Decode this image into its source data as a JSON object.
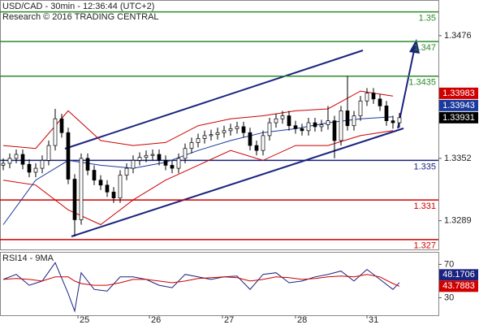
{
  "chart_data": [
    {
      "type": "candlestick",
      "title": "USD/CAD - 30min - 12:36:44 (UTC+2)",
      "subtitle": "Research © 2016 TRADING CENTRAL",
      "x": [
        0,
        1,
        2,
        3,
        4,
        5,
        6,
        7,
        8,
        9,
        10,
        11,
        12,
        13,
        14,
        15,
        16,
        17,
        18,
        19,
        20,
        21,
        22,
        23,
        24,
        25,
        26,
        27,
        28,
        29,
        30,
        31,
        32,
        33,
        34,
        35,
        36,
        37,
        38,
        39,
        40,
        41,
        42,
        43,
        44,
        45,
        46,
        47,
        48,
        49,
        50,
        51,
        52,
        53,
        54,
        55,
        56,
        57,
        58,
        59,
        60,
        61
      ],
      "open": [
        1.3345,
        1.3347,
        1.3352,
        1.3356,
        1.3346,
        1.3338,
        1.3342,
        1.335,
        1.3365,
        1.3392,
        1.3378,
        1.3331,
        1.329,
        1.3352,
        1.334,
        1.333,
        1.3325,
        1.3318,
        1.3312,
        1.3335,
        1.3342,
        1.335,
        1.3353,
        1.3355,
        1.3356,
        1.335,
        1.3345,
        1.3342,
        1.3352,
        1.3362,
        1.3368,
        1.3372,
        1.3375,
        1.3376,
        1.3378,
        1.338,
        1.3382,
        1.3384,
        1.3378,
        1.3365,
        1.336,
        1.3375,
        1.3388,
        1.3392,
        1.3395,
        1.3385,
        1.3382,
        1.338,
        1.3388,
        1.3384,
        1.3386,
        1.339,
        1.337,
        1.34,
        1.3385,
        1.3395,
        1.341,
        1.3418,
        1.3412,
        1.3405,
        1.339,
        1.3388
      ],
      "high": [
        1.3352,
        1.3357,
        1.3361,
        1.3361,
        1.3351,
        1.3347,
        1.3355,
        1.337,
        1.3402,
        1.3397,
        1.3383,
        1.3336,
        1.3357,
        1.3357,
        1.3345,
        1.3335,
        1.333,
        1.3323,
        1.334,
        1.3347,
        1.3355,
        1.3358,
        1.336,
        1.3361,
        1.3361,
        1.3355,
        1.335,
        1.3357,
        1.3367,
        1.3373,
        1.3377,
        1.338,
        1.3381,
        1.3383,
        1.3385,
        1.3387,
        1.3389,
        1.3389,
        1.3383,
        1.337,
        1.338,
        1.3393,
        1.3397,
        1.34,
        1.34,
        1.339,
        1.3387,
        1.3393,
        1.3393,
        1.3391,
        1.3405,
        1.3395,
        1.3405,
        1.3435,
        1.34,
        1.3415,
        1.3423,
        1.3423,
        1.3417,
        1.341,
        1.3395,
        1.3398
      ],
      "low": [
        1.334,
        1.3342,
        1.3347,
        1.3341,
        1.3333,
        1.3333,
        1.3337,
        1.3345,
        1.336,
        1.3373,
        1.3326,
        1.3273,
        1.3285,
        1.3335,
        1.3325,
        1.332,
        1.3313,
        1.3307,
        1.3307,
        1.333,
        1.3337,
        1.3345,
        1.3348,
        1.335,
        1.3345,
        1.334,
        1.3337,
        1.3337,
        1.3347,
        1.3357,
        1.3363,
        1.3367,
        1.337,
        1.3371,
        1.3373,
        1.3375,
        1.3377,
        1.3373,
        1.336,
        1.3355,
        1.3355,
        1.337,
        1.3383,
        1.3387,
        1.338,
        1.3377,
        1.3375,
        1.3375,
        1.3379,
        1.3379,
        1.3381,
        1.3352,
        1.3365,
        1.338,
        1.338,
        1.339,
        1.3405,
        1.3407,
        1.34,
        1.3385,
        1.3382,
        1.3383
      ],
      "close": [
        1.3347,
        1.3352,
        1.3356,
        1.3346,
        1.3338,
        1.3342,
        1.335,
        1.3365,
        1.3392,
        1.3378,
        1.3331,
        1.329,
        1.3352,
        1.334,
        1.333,
        1.3325,
        1.3318,
        1.3312,
        1.3335,
        1.3342,
        1.335,
        1.3353,
        1.3355,
        1.3356,
        1.335,
        1.3345,
        1.3342,
        1.3352,
        1.3362,
        1.3368,
        1.3372,
        1.3375,
        1.3376,
        1.3378,
        1.338,
        1.3382,
        1.3384,
        1.3378,
        1.3365,
        1.336,
        1.3375,
        1.3388,
        1.3392,
        1.3395,
        1.3385,
        1.3382,
        1.338,
        1.3388,
        1.3384,
        1.3386,
        1.339,
        1.337,
        1.34,
        1.3385,
        1.3395,
        1.341,
        1.3418,
        1.3412,
        1.3405,
        1.339,
        1.3388,
        1.33931
      ],
      "overlays": [
        {
          "color": "#cc0000",
          "x": [
            0,
            5,
            10,
            15,
            20,
            25,
            30,
            35,
            40,
            45,
            50,
            55,
            60
          ],
          "values": [
            1.3365,
            1.3362,
            1.34,
            1.337,
            1.3365,
            1.3368,
            1.3385,
            1.3392,
            1.3395,
            1.34,
            1.3402,
            1.342,
            1.3415
          ]
        },
        {
          "color": "#cc0000",
          "x": [
            0,
            5,
            10,
            15,
            20,
            25,
            30,
            35,
            40,
            45,
            50,
            55,
            60
          ],
          "values": [
            1.333,
            1.3325,
            1.33,
            1.3285,
            1.331,
            1.333,
            1.3345,
            1.336,
            1.335,
            1.3365,
            1.3365,
            1.3375,
            1.338
          ]
        },
        {
          "color": "#1a3a9c",
          "x": [
            0,
            5,
            10,
            15,
            20,
            25,
            30,
            35,
            40,
            45,
            50,
            55,
            60
          ],
          "values": [
            1.3285,
            1.333,
            1.335,
            1.3345,
            1.3342,
            1.3348,
            1.336,
            1.337,
            1.3378,
            1.3382,
            1.3388,
            1.3392,
            1.3394
          ]
        }
      ],
      "levels": [
        {
          "value": 1.35,
          "color": "#2e8b2e"
        },
        {
          "value": 1.347,
          "color": "#2e8b2e"
        },
        {
          "value": 1.3435,
          "color": "#2e8b2e"
        },
        {
          "value": 1.335,
          "color": "#1a237e"
        },
        {
          "value": 1.331,
          "color": "#d00000"
        },
        {
          "value": 1.327,
          "color": "#d00000"
        }
      ],
      "price_tags": [
        {
          "value": 1.33983,
          "color": "#d00000"
        },
        {
          "value": 1.33943,
          "color": "#1a3a9c"
        },
        {
          "value": 1.33931,
          "color": "#000000"
        }
      ],
      "xlim": [
        -0.5,
        67
      ],
      "ylim": [
        1.326,
        1.3512
      ],
      "yticks": [
        1.3476,
        1.3352,
        1.3289
      ]
    },
    {
      "type": "line",
      "title": "RSI14 - 9MA",
      "x": [
        0,
        2,
        4,
        6,
        8,
        10,
        11,
        12,
        14,
        16,
        18,
        20,
        22,
        24,
        26,
        28,
        30,
        32,
        34,
        36,
        38,
        40,
        42,
        44,
        46,
        48,
        50,
        52,
        54,
        56,
        58,
        60,
        61
      ],
      "series": [
        {
          "color": "#1a237e",
          "values": [
            52,
            58,
            45,
            50,
            72,
            35,
            14,
            60,
            40,
            38,
            55,
            55,
            52,
            45,
            42,
            58,
            55,
            52,
            55,
            56,
            40,
            58,
            60,
            48,
            50,
            55,
            58,
            62,
            50,
            64,
            52,
            40,
            48.1706
          ]
        },
        {
          "color": "#d00000",
          "values": [
            52,
            53,
            52,
            50,
            55,
            55,
            50,
            47,
            45,
            45,
            48,
            52,
            52,
            50,
            48,
            50,
            53,
            54,
            55,
            54,
            50,
            52,
            55,
            54,
            52,
            53,
            55,
            56,
            55,
            58,
            55,
            47,
            43.7883
          ]
        }
      ],
      "xlim": [
        -0.5,
        67
      ],
      "ylim": [
        9,
        85
      ],
      "yticks": [
        70,
        30
      ],
      "xticks": [
        {
          "value": 11.5,
          "label": "25"
        },
        {
          "value": 22.5,
          "label": "26"
        },
        {
          "value": 33.75,
          "label": "27"
        },
        {
          "value": 45,
          "label": "28"
        },
        {
          "value": 56,
          "label": "31"
        }
      ]
    }
  ]
}
